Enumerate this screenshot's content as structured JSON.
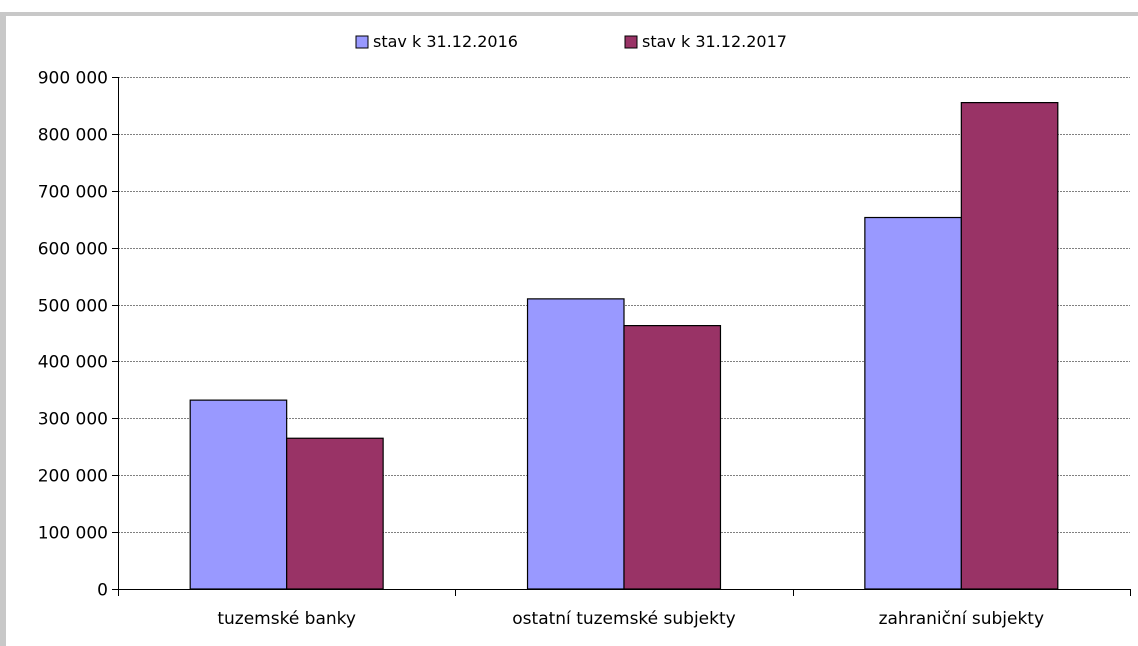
{
  "chart_data": {
    "type": "bar",
    "title": "",
    "xlabel": "",
    "ylabel": "",
    "categories": [
      "tuzemské banky",
      "ostatní tuzemské subjekty",
      "zahraniční subjekty"
    ],
    "series": [
      {
        "name": "stav k 31.12.2016",
        "color": "#9999FF",
        "values": [
          332000,
          510000,
          653000
        ]
      },
      {
        "name": "stav k 31.12.2017",
        "color": "#993366",
        "values": [
          265000,
          463000,
          855000
        ]
      }
    ],
    "ylim": [
      0,
      900000
    ],
    "yticks": [
      0,
      100000,
      200000,
      300000,
      400000,
      500000,
      600000,
      700000,
      800000,
      900000
    ],
    "ytick_labels": [
      "0",
      "100 000",
      "200 000",
      "300 000",
      "400 000",
      "500 000",
      "600 000",
      "700 000",
      "800 000",
      "900 000"
    ],
    "grid": true,
    "legend_position": "top-center"
  }
}
